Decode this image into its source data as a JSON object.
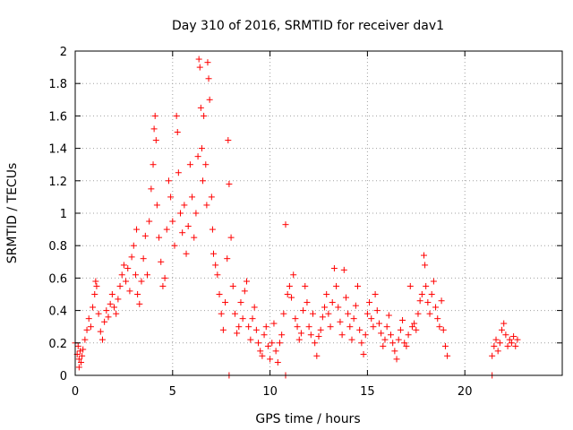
{
  "chart_data": {
    "type": "scatter",
    "title": "Day 310 of 2016, SRMTID for receiver dav1",
    "xlabel": "GPS time / hours",
    "ylabel": "SRMTID / TECUs",
    "xlim": [
      0,
      25
    ],
    "ylim": [
      0,
      2
    ],
    "xticks": [
      "0",
      "5",
      "10",
      "15",
      "20"
    ],
    "yticks": [
      "0",
      "0.2",
      "0.4",
      "0.6",
      "0.8",
      "1",
      "1.2",
      "1.4",
      "1.6",
      "1.8",
      "2"
    ],
    "grid": true,
    "marker": "plus",
    "color": "#ff0000",
    "series": [
      {
        "name": "dav1",
        "points": [
          [
            0.0,
            0.2
          ],
          [
            0.1,
            0.13
          ],
          [
            0.15,
            0.18
          ],
          [
            0.2,
            0.1
          ],
          [
            0.25,
            0.15
          ],
          [
            0.3,
            0.08
          ],
          [
            0.35,
            0.12
          ],
          [
            0.4,
            0.16
          ],
          [
            0.5,
            0.22
          ],
          [
            0.6,
            0.28
          ],
          [
            0.7,
            0.35
          ],
          [
            0.8,
            0.3
          ],
          [
            0.9,
            0.42
          ],
          [
            1.0,
            0.5
          ],
          [
            1.05,
            0.58
          ],
          [
            1.1,
            0.55
          ],
          [
            1.2,
            0.38
          ],
          [
            1.3,
            0.27
          ],
          [
            1.4,
            0.22
          ],
          [
            1.5,
            0.33
          ],
          [
            1.6,
            0.4
          ],
          [
            1.7,
            0.36
          ],
          [
            1.8,
            0.44
          ],
          [
            1.9,
            0.5
          ],
          [
            2.0,
            0.42
          ],
          [
            2.1,
            0.38
          ],
          [
            2.2,
            0.47
          ],
          [
            2.3,
            0.55
          ],
          [
            2.4,
            0.62
          ],
          [
            2.5,
            0.68
          ],
          [
            2.6,
            0.58
          ],
          [
            2.7,
            0.66
          ],
          [
            2.8,
            0.52
          ],
          [
            2.9,
            0.73
          ],
          [
            3.0,
            0.8
          ],
          [
            3.1,
            0.62
          ],
          [
            3.15,
            0.9
          ],
          [
            3.2,
            0.5
          ],
          [
            3.3,
            0.44
          ],
          [
            3.4,
            0.58
          ],
          [
            3.5,
            0.72
          ],
          [
            3.6,
            0.86
          ],
          [
            3.7,
            0.62
          ],
          [
            3.8,
            0.95
          ],
          [
            3.9,
            1.15
          ],
          [
            4.0,
            1.3
          ],
          [
            4.05,
            1.52
          ],
          [
            4.1,
            1.6
          ],
          [
            4.15,
            1.45
          ],
          [
            4.2,
            1.05
          ],
          [
            4.3,
            0.85
          ],
          [
            4.4,
            0.7
          ],
          [
            4.5,
            0.55
          ],
          [
            4.6,
            0.6
          ],
          [
            4.7,
            0.9
          ],
          [
            4.8,
            1.2
          ],
          [
            4.9,
            1.1
          ],
          [
            5.0,
            0.95
          ],
          [
            5.1,
            0.8
          ],
          [
            5.2,
            1.6
          ],
          [
            5.25,
            1.5
          ],
          [
            5.3,
            1.25
          ],
          [
            5.4,
            1.0
          ],
          [
            5.5,
            0.88
          ],
          [
            5.6,
            1.05
          ],
          [
            5.7,
            0.75
          ],
          [
            5.8,
            0.92
          ],
          [
            5.9,
            1.3
          ],
          [
            6.0,
            1.1
          ],
          [
            6.1,
            0.85
          ],
          [
            6.2,
            1.0
          ],
          [
            6.3,
            1.35
          ],
          [
            6.35,
            1.95
          ],
          [
            6.4,
            1.9
          ],
          [
            6.45,
            1.65
          ],
          [
            6.5,
            1.4
          ],
          [
            6.55,
            1.2
          ],
          [
            6.6,
            1.6
          ],
          [
            6.7,
            1.3
          ],
          [
            6.75,
            1.05
          ],
          [
            6.8,
            1.93
          ],
          [
            6.85,
            1.83
          ],
          [
            6.9,
            1.7
          ],
          [
            7.0,
            1.1
          ],
          [
            7.05,
            0.9
          ],
          [
            7.1,
            0.75
          ],
          [
            7.2,
            0.68
          ],
          [
            7.3,
            0.62
          ],
          [
            7.4,
            0.5
          ],
          [
            7.5,
            0.38
          ],
          [
            7.6,
            0.28
          ],
          [
            7.7,
            0.45
          ],
          [
            7.8,
            0.72
          ],
          [
            7.85,
            1.45
          ],
          [
            7.9,
            1.18
          ],
          [
            8.0,
            0.85
          ],
          [
            8.1,
            0.55
          ],
          [
            8.2,
            0.38
          ],
          [
            8.3,
            0.26
          ],
          [
            8.4,
            0.3
          ],
          [
            8.5,
            0.45
          ],
          [
            8.6,
            0.35
          ],
          [
            8.7,
            0.52
          ],
          [
            8.8,
            0.58
          ],
          [
            8.9,
            0.3
          ],
          [
            9.0,
            0.22
          ],
          [
            9.1,
            0.35
          ],
          [
            9.2,
            0.42
          ],
          [
            9.3,
            0.28
          ],
          [
            9.4,
            0.2
          ],
          [
            9.5,
            0.15
          ],
          [
            9.6,
            0.12
          ],
          [
            9.7,
            0.25
          ],
          [
            9.8,
            0.3
          ],
          [
            9.9,
            0.18
          ],
          [
            10.0,
            0.1
          ],
          [
            10.1,
            0.2
          ],
          [
            10.2,
            0.32
          ],
          [
            10.3,
            0.15
          ],
          [
            10.4,
            0.08
          ],
          [
            10.5,
            0.2
          ],
          [
            10.6,
            0.25
          ],
          [
            10.7,
            0.38
          ],
          [
            10.8,
            0.93
          ],
          [
            10.9,
            0.5
          ],
          [
            11.0,
            0.55
          ],
          [
            11.1,
            0.48
          ],
          [
            11.2,
            0.62
          ],
          [
            11.3,
            0.35
          ],
          [
            11.4,
            0.3
          ],
          [
            11.5,
            0.22
          ],
          [
            11.6,
            0.26
          ],
          [
            11.7,
            0.4
          ],
          [
            11.8,
            0.55
          ],
          [
            11.9,
            0.45
          ],
          [
            12.0,
            0.3
          ],
          [
            12.1,
            0.25
          ],
          [
            12.2,
            0.38
          ],
          [
            12.3,
            0.2
          ],
          [
            12.4,
            0.12
          ],
          [
            12.5,
            0.24
          ],
          [
            12.6,
            0.28
          ],
          [
            12.7,
            0.36
          ],
          [
            12.8,
            0.42
          ],
          [
            12.9,
            0.5
          ],
          [
            13.0,
            0.38
          ],
          [
            13.1,
            0.3
          ],
          [
            13.2,
            0.45
          ],
          [
            13.3,
            0.66
          ],
          [
            13.4,
            0.55
          ],
          [
            13.5,
            0.42
          ],
          [
            13.6,
            0.33
          ],
          [
            13.7,
            0.25
          ],
          [
            13.8,
            0.65
          ],
          [
            13.9,
            0.48
          ],
          [
            14.0,
            0.38
          ],
          [
            14.1,
            0.3
          ],
          [
            14.2,
            0.22
          ],
          [
            14.3,
            0.35
          ],
          [
            14.4,
            0.43
          ],
          [
            14.5,
            0.55
          ],
          [
            14.6,
            0.28
          ],
          [
            14.7,
            0.2
          ],
          [
            14.8,
            0.13
          ],
          [
            14.9,
            0.25
          ],
          [
            15.0,
            0.38
          ],
          [
            15.1,
            0.45
          ],
          [
            15.2,
            0.35
          ],
          [
            15.3,
            0.3
          ],
          [
            15.4,
            0.5
          ],
          [
            15.5,
            0.4
          ],
          [
            15.6,
            0.32
          ],
          [
            15.7,
            0.26
          ],
          [
            15.8,
            0.18
          ],
          [
            15.9,
            0.22
          ],
          [
            16.0,
            0.3
          ],
          [
            16.1,
            0.37
          ],
          [
            16.2,
            0.25
          ],
          [
            16.3,
            0.2
          ],
          [
            16.4,
            0.15
          ],
          [
            16.5,
            0.1
          ],
          [
            16.6,
            0.22
          ],
          [
            16.7,
            0.28
          ],
          [
            16.8,
            0.34
          ],
          [
            16.9,
            0.2
          ],
          [
            17.0,
            0.18
          ],
          [
            17.1,
            0.25
          ],
          [
            17.2,
            0.55
          ],
          [
            17.3,
            0.3
          ],
          [
            17.4,
            0.32
          ],
          [
            17.5,
            0.28
          ],
          [
            17.6,
            0.38
          ],
          [
            17.7,
            0.46
          ],
          [
            17.8,
            0.5
          ],
          [
            17.9,
            0.74
          ],
          [
            17.95,
            0.68
          ],
          [
            18.0,
            0.55
          ],
          [
            18.1,
            0.45
          ],
          [
            18.2,
            0.38
          ],
          [
            18.3,
            0.5
          ],
          [
            18.4,
            0.58
          ],
          [
            18.5,
            0.42
          ],
          [
            18.6,
            0.35
          ],
          [
            18.7,
            0.3
          ],
          [
            18.8,
            0.46
          ],
          [
            18.9,
            0.28
          ],
          [
            19.0,
            0.18
          ],
          [
            19.1,
            0.12
          ],
          [
            21.4,
            0.12
          ],
          [
            21.5,
            0.18
          ],
          [
            21.6,
            0.22
          ],
          [
            21.7,
            0.15
          ],
          [
            21.8,
            0.2
          ],
          [
            21.9,
            0.28
          ],
          [
            22.0,
            0.32
          ],
          [
            22.1,
            0.25
          ],
          [
            22.2,
            0.18
          ],
          [
            22.3,
            0.22
          ],
          [
            22.4,
            0.2
          ],
          [
            22.5,
            0.24
          ],
          [
            22.6,
            0.18
          ],
          [
            22.7,
            0.22
          ],
          [
            0.2,
            0.05
          ],
          [
            7.9,
            0.0
          ],
          [
            10.8,
            0.0
          ],
          [
            21.4,
            0.0
          ]
        ]
      }
    ]
  }
}
